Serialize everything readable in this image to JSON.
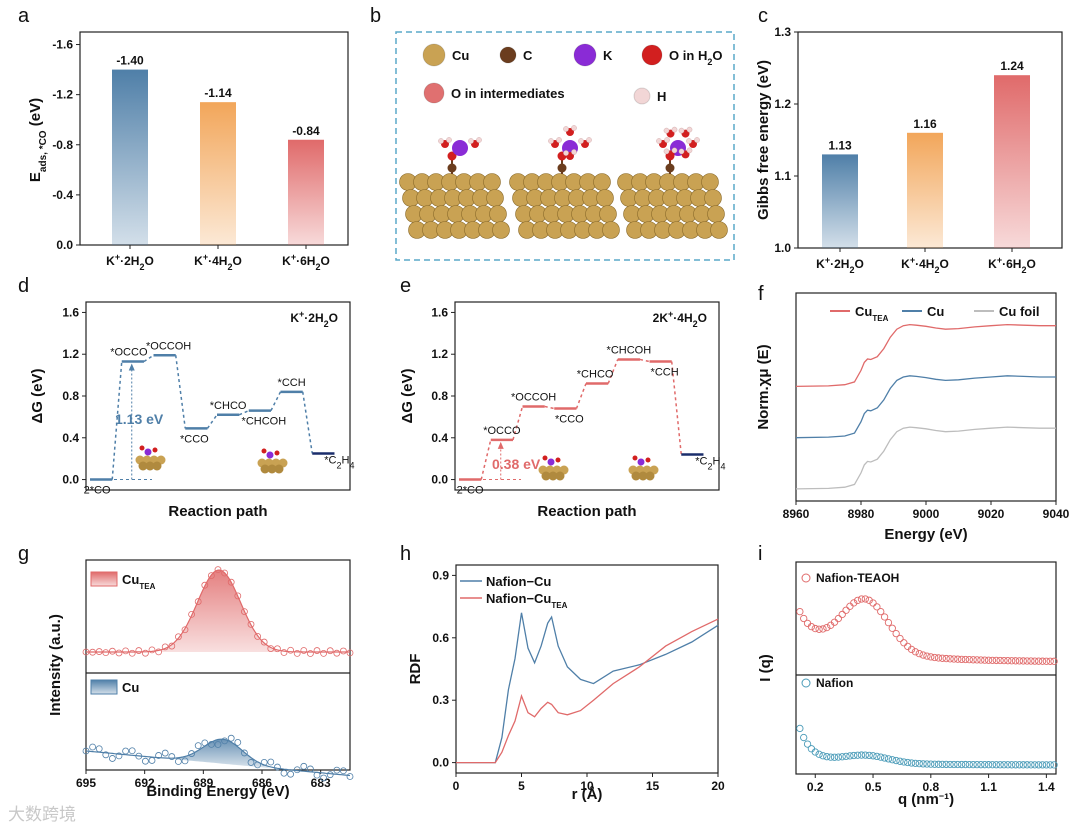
{
  "colors": {
    "blue": "#4f7fa8",
    "orange": "#f2a65a",
    "red": "#e06a6a",
    "gray": "#bdbdbd",
    "cyan": "#4a9bb8"
  },
  "watermark": "大数跨境",
  "chart_data": [
    {
      "id": "a",
      "type": "bar",
      "panel": "a",
      "categories": [
        "K⁺·2H₂O",
        "K⁺·4H₂O",
        "K⁺·6H₂O"
      ],
      "values": [
        -1.4,
        -1.14,
        -0.84
      ],
      "labels": [
        "-1.40",
        "-1.14",
        "-0.84"
      ],
      "ylabel": "Eads, *CO (eV)",
      "ylim": [
        0,
        -1.7
      ],
      "yticks": [
        "0.0",
        "-0.4",
        "-0.8",
        "-1.2",
        "-1.6"
      ],
      "ytick_values": [
        0,
        -0.4,
        -0.8,
        -1.2,
        -1.6
      ],
      "colors": [
        "#4f7fa8",
        "#f2a65a",
        "#e06a6a"
      ]
    },
    {
      "id": "b",
      "type": "schematic",
      "panel": "b",
      "legend": [
        "Cu",
        "C",
        "K",
        "O in H₂O",
        "O in intermediates",
        "H"
      ],
      "legend_colors": [
        "#c9a253",
        "#6b3d1e",
        "#8a2bd6",
        "#d21f1f",
        "#e07070",
        "#f2d6d6"
      ]
    },
    {
      "id": "c",
      "type": "bar",
      "panel": "c",
      "categories": [
        "K⁺·2H₂O",
        "K⁺·4H₂O",
        "K⁺·6H₂O"
      ],
      "values": [
        1.13,
        1.16,
        1.24
      ],
      "labels": [
        "1.13",
        "1.16",
        "1.24"
      ],
      "ylabel": "Gibbs free energy (eV)",
      "ylim": [
        1.0,
        1.3
      ],
      "yticks": [
        "1.0",
        "1.1",
        "1.2",
        "1.3"
      ],
      "ytick_values": [
        1.0,
        1.1,
        1.2,
        1.3
      ],
      "colors": [
        "#4f7fa8",
        "#f2a65a",
        "#e06a6a"
      ]
    },
    {
      "id": "d",
      "type": "energy_diagram",
      "panel": "d",
      "title": "K⁺·2H₂O",
      "xlabel": "Reaction path",
      "ylabel": "ΔG (eV)",
      "ylim": [
        -0.1,
        1.7
      ],
      "yticks": [
        "0.0",
        "0.4",
        "0.8",
        "1.2",
        "1.6"
      ],
      "ytick_values": [
        0,
        0.4,
        0.8,
        1.2,
        1.6
      ],
      "steps": [
        "2*CO",
        "*OCCO",
        "*OCCOH",
        "*CCO",
        "*CHCO",
        "*CHCOH",
        "*CCH",
        "*C₂H₄"
      ],
      "energies": [
        0.0,
        1.13,
        1.19,
        0.49,
        0.62,
        0.66,
        0.84,
        0.25
      ],
      "barrier_label": "1.13 eV",
      "color": "#4f7fa8"
    },
    {
      "id": "e",
      "type": "energy_diagram",
      "panel": "e",
      "title": "2K⁺·4H₂O",
      "xlabel": "Reaction path",
      "ylabel": "ΔG (eV)",
      "ylim": [
        -0.1,
        1.7
      ],
      "yticks": [
        "0.0",
        "0.4",
        "0.8",
        "1.2",
        "1.6"
      ],
      "ytick_values": [
        0,
        0.4,
        0.8,
        1.2,
        1.6
      ],
      "steps": [
        "2*CO",
        "*OCCO",
        "*OCCOH",
        "*CCO",
        "*CHCO",
        "*CHCOH",
        "*CCH",
        "*C₂H₄"
      ],
      "energies": [
        0.0,
        0.38,
        0.7,
        0.68,
        0.92,
        1.15,
        1.13,
        0.24
      ],
      "barrier_label": "0.38 eV",
      "color": "#e06a6a"
    },
    {
      "id": "f",
      "type": "line",
      "panel": "f",
      "xlabel": "Energy (eV)",
      "ylabel": "Norm.χμ (E)",
      "xlim": [
        8960,
        9040
      ],
      "xticks": [
        "8960",
        "8980",
        "9000",
        "9020",
        "9040"
      ],
      "xtick_values": [
        8960,
        8980,
        9000,
        9020,
        9040
      ],
      "series": [
        {
          "name": "CuTEA",
          "color": "#e06a6a",
          "offset": 2.0
        },
        {
          "name": "Cu",
          "color": "#4f7fa8",
          "offset": 1.0
        },
        {
          "name": "Cu foil",
          "color": "#bdbdbd",
          "offset": 0.0
        }
      ],
      "x": [
        8960,
        8970,
        8975,
        8978,
        8980,
        8981,
        8982,
        8983,
        8985,
        8987,
        8989,
        8991,
        8993,
        8995,
        8997,
        9000,
        9003,
        9006,
        9010,
        9015,
        9020,
        9025,
        9030,
        9035,
        9040
      ],
      "y": [
        0.0,
        0.01,
        0.03,
        0.08,
        0.28,
        0.42,
        0.48,
        0.47,
        0.52,
        0.66,
        0.86,
        1.0,
        1.06,
        1.08,
        1.07,
        1.05,
        1.02,
        1.0,
        1.01,
        1.04,
        1.06,
        1.08,
        1.07,
        1.06,
        1.06
      ]
    },
    {
      "id": "g",
      "type": "line",
      "panel": "g",
      "xlabel": "Binding Energy (eV)",
      "ylabel": "Intensity (a.u.)",
      "xlim": [
        695,
        681.5
      ],
      "xticks": [
        "695",
        "692",
        "689",
        "686",
        "683"
      ],
      "xtick_values": [
        695,
        692,
        689,
        686,
        683
      ],
      "series": [
        {
          "name": "CuTEA",
          "color": "#e06a6a",
          "peak_center": 688.2,
          "peak_height": 1.0,
          "peak_width": 1.1
        },
        {
          "name": "Cu",
          "color": "#4f7fa8",
          "peak_center": 688.0,
          "peak_height": 0.35,
          "peak_width": 1.0
        }
      ]
    },
    {
      "id": "h",
      "type": "line",
      "panel": "h",
      "xlabel": "r (Å)",
      "ylabel": "RDF",
      "xlim": [
        0,
        20
      ],
      "ylim": [
        -0.05,
        0.95
      ],
      "xticks": [
        "0",
        "5",
        "10",
        "15",
        "20"
      ],
      "xtick_values": [
        0,
        5,
        10,
        15,
        20
      ],
      "yticks": [
        "0.0",
        "0.3",
        "0.6",
        "0.9"
      ],
      "ytick_values": [
        0,
        0.3,
        0.6,
        0.9
      ],
      "series": [
        {
          "name": "Nafion−Cu",
          "color": "#4f7fa8",
          "x": [
            0,
            3,
            3.5,
            4,
            4.5,
            5,
            5.5,
            6,
            6.5,
            7,
            7.3,
            7.8,
            8.5,
            9.5,
            10.5,
            12,
            14,
            16,
            18,
            20
          ],
          "y": [
            0,
            0,
            0.12,
            0.35,
            0.5,
            0.72,
            0.55,
            0.48,
            0.56,
            0.67,
            0.7,
            0.56,
            0.46,
            0.4,
            0.38,
            0.44,
            0.47,
            0.52,
            0.58,
            0.66
          ]
        },
        {
          "name": "Nafion−CuTEA",
          "color": "#e06a6a",
          "x": [
            0,
            3,
            3.5,
            4,
            4.5,
            5,
            5.5,
            6,
            6.5,
            7,
            7.3,
            7.8,
            8.5,
            9.5,
            10.5,
            12,
            14,
            16,
            18,
            20
          ],
          "y": [
            0,
            0,
            0.05,
            0.13,
            0.2,
            0.32,
            0.24,
            0.22,
            0.26,
            0.29,
            0.28,
            0.24,
            0.23,
            0.25,
            0.3,
            0.38,
            0.46,
            0.56,
            0.63,
            0.69
          ]
        }
      ]
    },
    {
      "id": "i",
      "type": "scatter",
      "panel": "i",
      "xlabel": "q (nm⁻¹)",
      "ylabel": "I (q)",
      "xlim": [
        0.1,
        1.45
      ],
      "xticks": [
        "0.2",
        "0.5",
        "0.8",
        "1.1",
        "1.4"
      ],
      "xtick_values": [
        0.2,
        0.5,
        0.8,
        1.1,
        1.4
      ],
      "series": [
        {
          "name": "Nafion-TEAOH",
          "color": "#e06a6a",
          "offset": 1.0
        },
        {
          "name": "Nafion",
          "color": "#4a9bb8",
          "offset": 0.0
        }
      ]
    }
  ]
}
